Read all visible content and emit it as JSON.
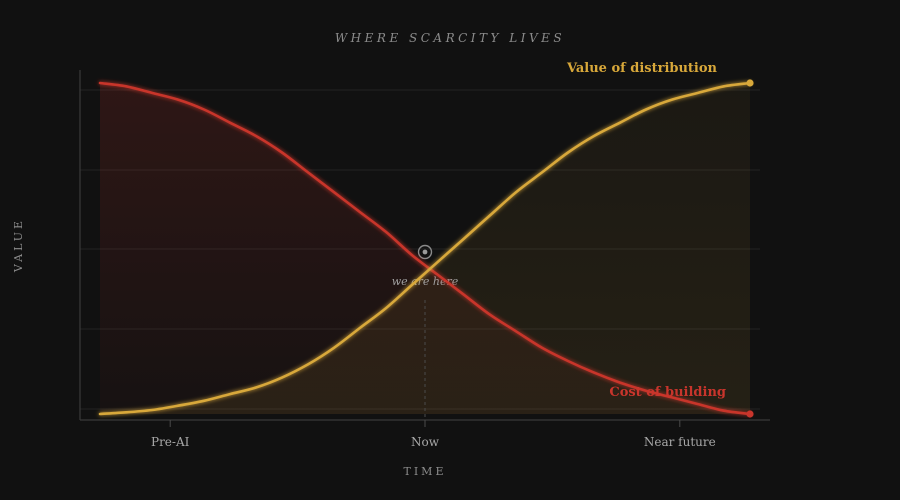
{
  "chart_data": {
    "type": "line",
    "title": "WHERE SCARCITY LIVES",
    "xlabel": "TIME",
    "ylabel": "VALUE",
    "xlim": [
      0,
      1
    ],
    "ylim": [
      0,
      1
    ],
    "grid": true,
    "x_ticks": [
      {
        "x": 0.108,
        "label": "Pre-AI"
      },
      {
        "x": 0.5,
        "label": "Now"
      },
      {
        "x": 0.892,
        "label": "Near future"
      }
    ],
    "series": [
      {
        "name": "Cost of building",
        "color": "#c8352c",
        "fill_below": true,
        "end_marker": true,
        "x": [
          0.0,
          0.04,
          0.08,
          0.12,
          0.16,
          0.2,
          0.24,
          0.28,
          0.32,
          0.36,
          0.4,
          0.44,
          0.48,
          0.52,
          0.56,
          0.6,
          0.64,
          0.68,
          0.72,
          0.76,
          0.8,
          0.84,
          0.88,
          0.92,
          0.96,
          1.0
        ],
        "y": [
          1.0,
          0.99,
          0.97,
          0.95,
          0.92,
          0.88,
          0.84,
          0.79,
          0.73,
          0.67,
          0.61,
          0.55,
          0.48,
          0.42,
          0.36,
          0.3,
          0.25,
          0.2,
          0.16,
          0.125,
          0.095,
          0.07,
          0.05,
          0.03,
          0.01,
          0.0
        ]
      },
      {
        "name": "Value of distribution",
        "color": "#d8a83a",
        "fill_below": true,
        "end_marker": true,
        "x": [
          0.0,
          0.04,
          0.08,
          0.12,
          0.16,
          0.2,
          0.24,
          0.28,
          0.32,
          0.36,
          0.4,
          0.44,
          0.48,
          0.52,
          0.56,
          0.6,
          0.64,
          0.68,
          0.72,
          0.76,
          0.8,
          0.84,
          0.88,
          0.92,
          0.96,
          1.0
        ],
        "y": [
          0.0,
          0.005,
          0.012,
          0.025,
          0.04,
          0.06,
          0.08,
          0.11,
          0.15,
          0.2,
          0.26,
          0.32,
          0.39,
          0.46,
          0.53,
          0.6,
          0.67,
          0.73,
          0.79,
          0.84,
          0.88,
          0.92,
          0.95,
          0.97,
          0.99,
          1.0
        ]
      }
    ],
    "annotations": [
      {
        "text": "we are here",
        "x": 0.5,
        "y": 0.5,
        "marker": "target"
      }
    ]
  }
}
